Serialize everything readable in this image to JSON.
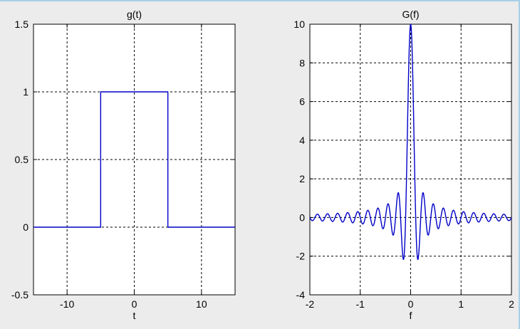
{
  "chart_data": [
    {
      "type": "line",
      "title": "g(t)",
      "xlabel": "t",
      "ylabel": "",
      "xlim": [
        -15,
        15
      ],
      "ylim": [
        -0.5,
        1.5
      ],
      "xticks": [
        -10,
        0,
        10
      ],
      "yticks": [
        -0.5,
        0,
        0.5,
        1,
        1.5
      ],
      "xtick_labels": [
        "-10",
        "0",
        "10"
      ],
      "ytick_labels": [
        "-0.5",
        "0",
        "0.5",
        "1",
        "1.5"
      ],
      "grid": true,
      "color": "#0000c8",
      "series": [
        {
          "x": [
            -15,
            -5,
            -5,
            5,
            5,
            15
          ],
          "y": [
            0,
            0,
            1,
            1,
            0,
            0
          ]
        }
      ]
    },
    {
      "type": "line",
      "title": "G(f)",
      "xlabel": "f",
      "ylabel": "",
      "xlim": [
        -2,
        2
      ],
      "ylim": [
        -4,
        10
      ],
      "xticks": [
        -2,
        -1,
        0,
        1,
        2
      ],
      "yticks": [
        -4,
        -2,
        0,
        2,
        4,
        6,
        8,
        10
      ],
      "xtick_labels": [
        "-2",
        "-1",
        "0",
        "1",
        "2"
      ],
      "ytick_labels": [
        "-4",
        "-2",
        "0",
        "2",
        "4",
        "6",
        "8",
        "10"
      ],
      "grid": true,
      "color": "#0000c8",
      "series": [
        {
          "function": "10*sinc(10*f)",
          "x_range": [
            -2,
            2
          ],
          "clipped_at": 10
        }
      ]
    }
  ]
}
